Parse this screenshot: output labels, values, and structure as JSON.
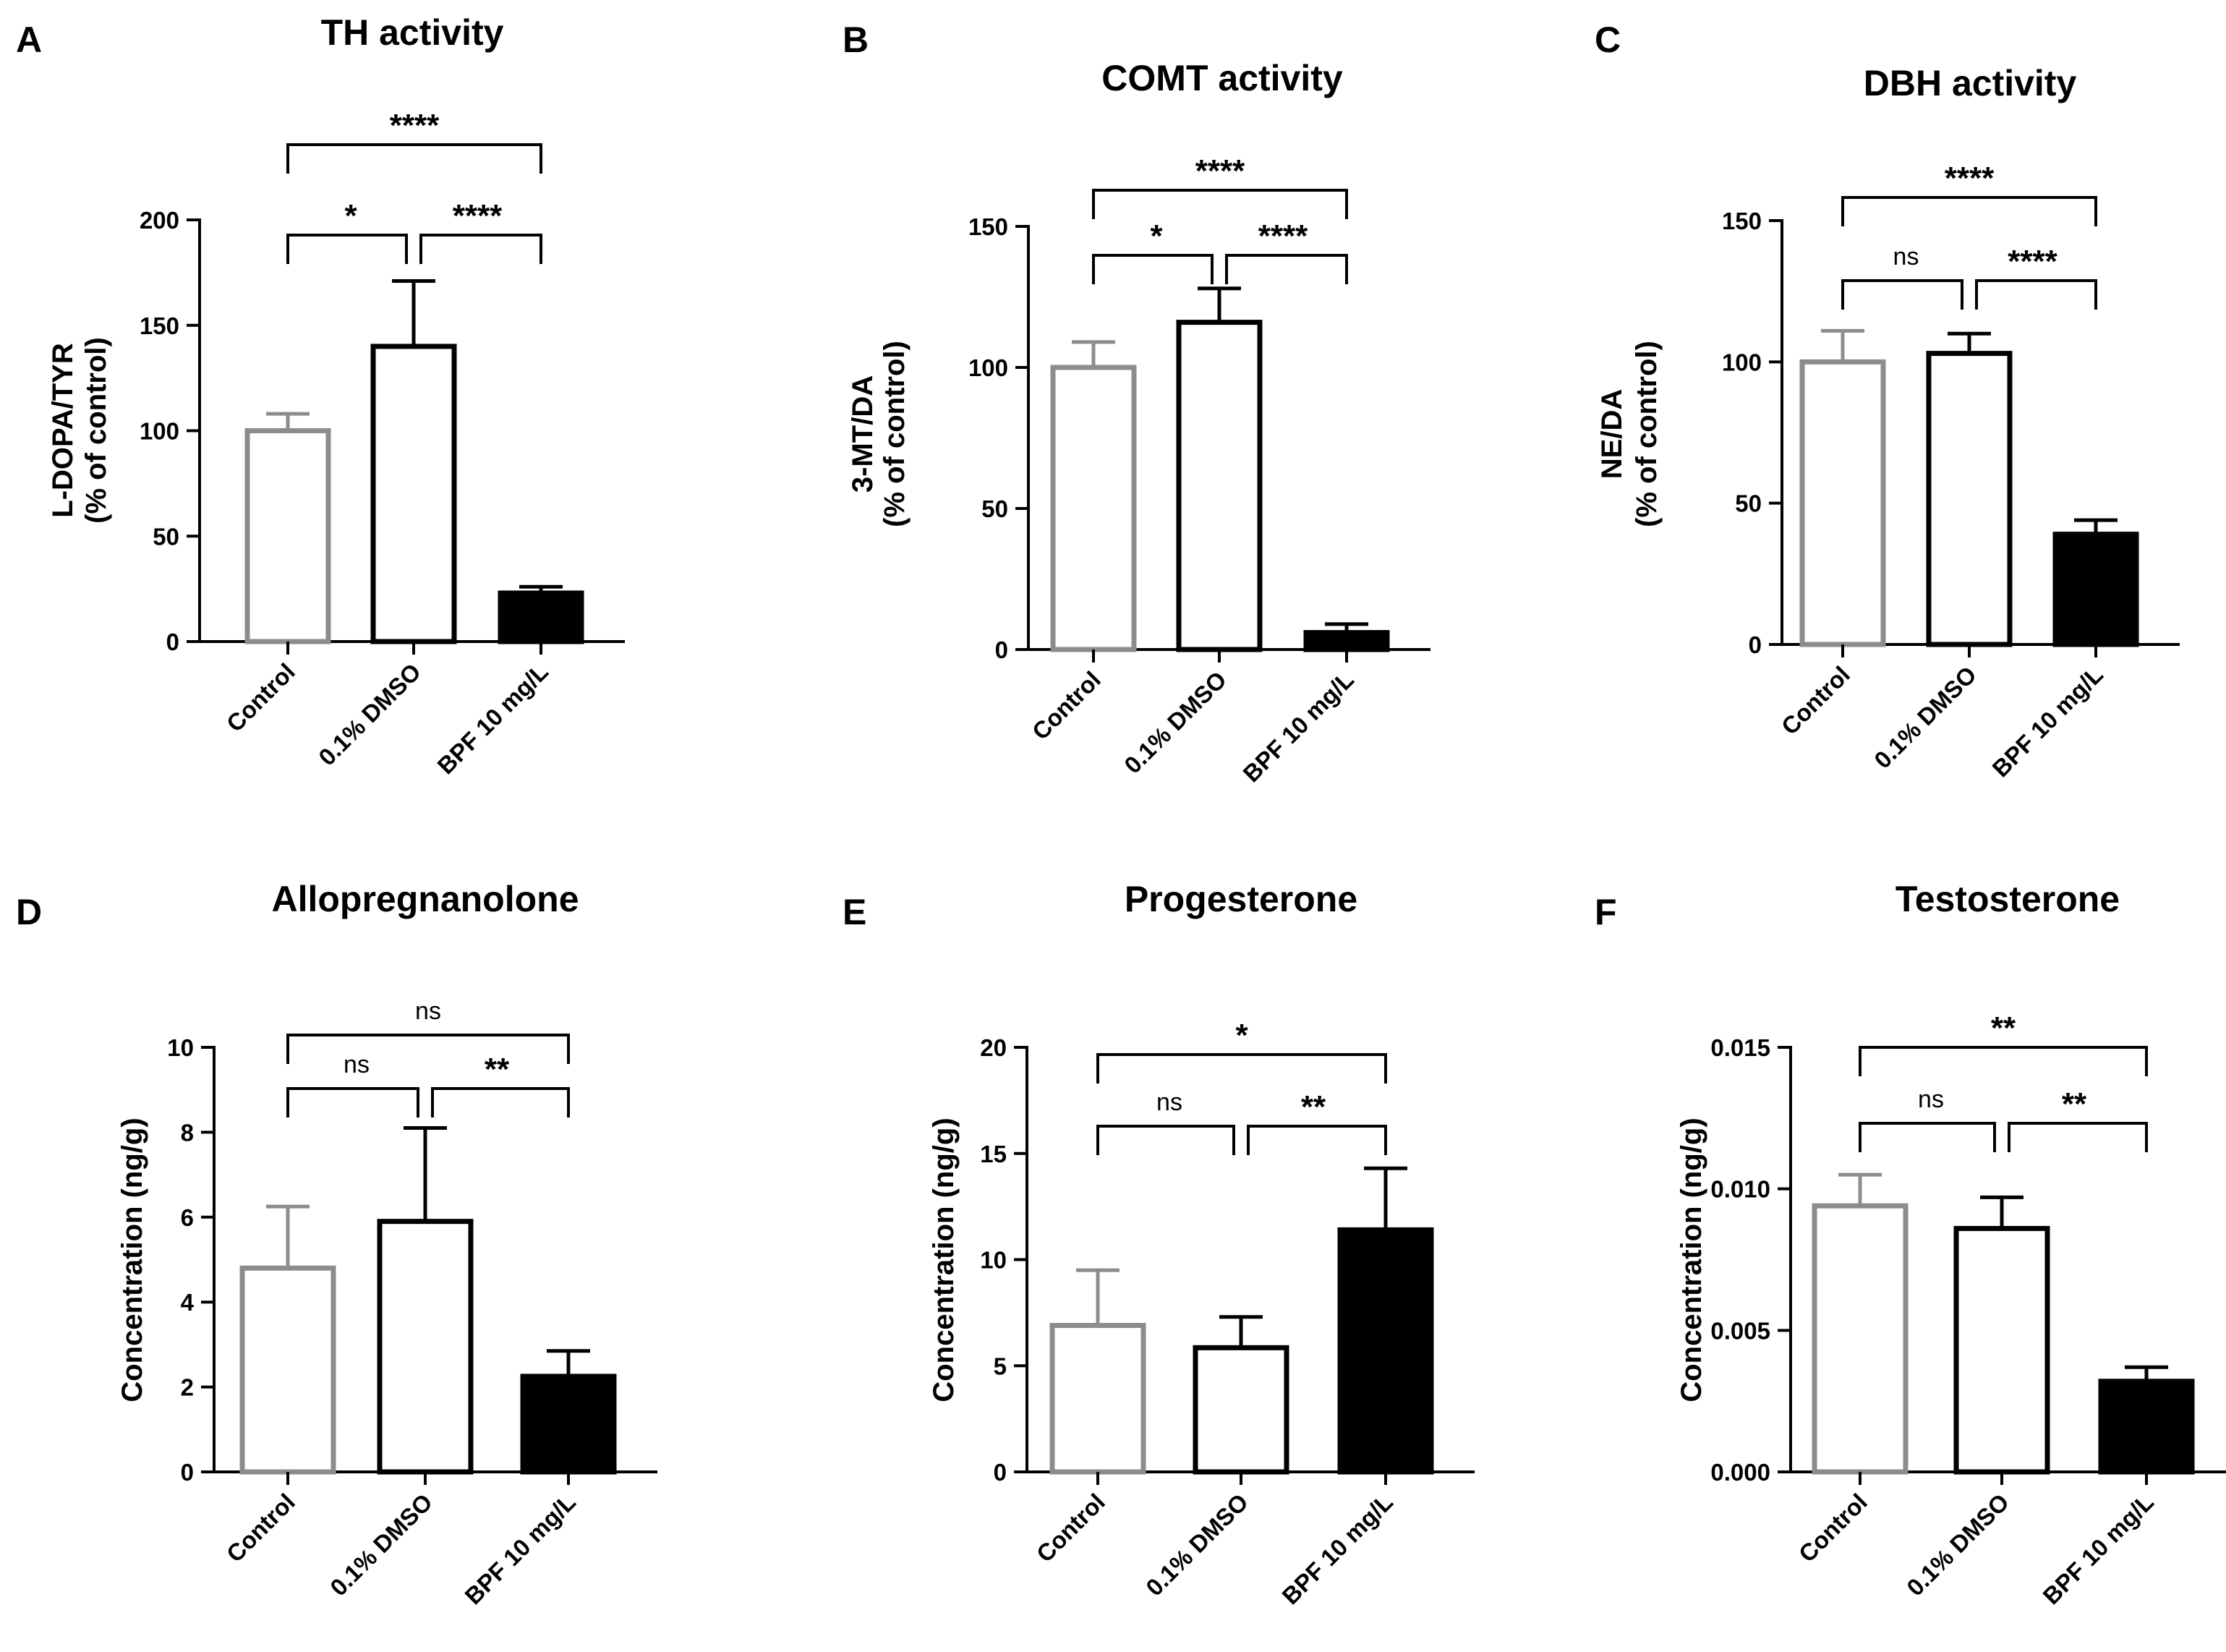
{
  "chart_data": [
    {
      "type": "bar",
      "panel": "A",
      "title": "TH activity",
      "ylabel": [
        "L-DOPA/TYR",
        "(% of control)"
      ],
      "categories": [
        "Control",
        "0.1% DMSO",
        "BPF 10 mg/L"
      ],
      "values": [
        100,
        140,
        23
      ],
      "errors": [
        8,
        31,
        3
      ],
      "ylim": [
        0,
        200
      ],
      "yticks": [
        0,
        50,
        100,
        150,
        200
      ],
      "ytick_labels": [
        "0",
        "50",
        "100",
        "150",
        "200"
      ],
      "bar_styles": [
        "gray-outline",
        "black-outline",
        "black-filled"
      ],
      "significance": [
        {
          "from": 0,
          "to": 1,
          "label": "*"
        },
        {
          "from": 1,
          "to": 2,
          "label": "****"
        },
        {
          "from": 0,
          "to": 2,
          "label": "****"
        }
      ]
    },
    {
      "type": "bar",
      "panel": "B",
      "title": "COMT activity",
      "ylabel": [
        "3-MT/DA",
        "(% of control)"
      ],
      "categories": [
        "Control",
        "0.1% DMSO",
        "BPF 10 mg/L"
      ],
      "values": [
        100,
        116,
        6
      ],
      "errors": [
        9,
        12,
        3
      ],
      "ylim": [
        0,
        150
      ],
      "yticks": [
        0,
        50,
        100,
        150
      ],
      "ytick_labels": [
        "0",
        "50",
        "100",
        "150"
      ],
      "bar_styles": [
        "gray-outline",
        "black-outline",
        "black-filled"
      ],
      "significance": [
        {
          "from": 0,
          "to": 1,
          "label": "*"
        },
        {
          "from": 1,
          "to": 2,
          "label": "****"
        },
        {
          "from": 0,
          "to": 2,
          "label": "****"
        }
      ]
    },
    {
      "type": "bar",
      "panel": "C",
      "title": "DBH activity",
      "ylabel": [
        "NE/DA",
        "(% of control)"
      ],
      "categories": [
        "Control",
        "0.1% DMSO",
        "BPF 10 mg/L"
      ],
      "values": [
        100,
        103,
        39
      ],
      "errors": [
        11,
        7,
        5
      ],
      "ylim": [
        0,
        150
      ],
      "yticks": [
        0,
        50,
        100,
        150
      ],
      "ytick_labels": [
        "0",
        "50",
        "100",
        "150"
      ],
      "bar_styles": [
        "gray-outline",
        "black-outline",
        "black-filled"
      ],
      "significance": [
        {
          "from": 0,
          "to": 1,
          "label": "ns"
        },
        {
          "from": 1,
          "to": 2,
          "label": "****"
        },
        {
          "from": 0,
          "to": 2,
          "label": "****"
        }
      ]
    },
    {
      "type": "bar",
      "panel": "D",
      "title": "Allopregnanolone",
      "ylabel": [
        "Concentration (ng/g)"
      ],
      "categories": [
        "Control",
        "0.1% DMSO",
        "BPF 10 mg/L"
      ],
      "values": [
        4.8,
        5.9,
        2.25
      ],
      "errors": [
        1.45,
        2.2,
        0.6
      ],
      "ylim": [
        0,
        10
      ],
      "yticks": [
        0,
        2,
        4,
        6,
        8,
        10
      ],
      "ytick_labels": [
        "0",
        "2",
        "4",
        "6",
        "8",
        "10"
      ],
      "bar_styles": [
        "gray-outline",
        "black-outline",
        "black-filled"
      ],
      "significance": [
        {
          "from": 0,
          "to": 1,
          "label": "ns"
        },
        {
          "from": 1,
          "to": 2,
          "label": "**"
        },
        {
          "from": 0,
          "to": 2,
          "label": "ns"
        }
      ]
    },
    {
      "type": "bar",
      "panel": "E",
      "title": "Progesterone",
      "ylabel": [
        "Concentration (ng/g)"
      ],
      "categories": [
        "Control",
        "0.1% DMSO",
        "BPF 10 mg/L"
      ],
      "values": [
        6.9,
        5.85,
        11.4
      ],
      "errors": [
        2.6,
        1.45,
        2.9
      ],
      "ylim": [
        0,
        20
      ],
      "yticks": [
        0,
        5,
        10,
        15,
        20
      ],
      "ytick_labels": [
        "0",
        "5",
        "10",
        "15",
        "20"
      ],
      "bar_styles": [
        "gray-outline",
        "black-outline",
        "black-filled"
      ],
      "significance": [
        {
          "from": 0,
          "to": 1,
          "label": "ns"
        },
        {
          "from": 1,
          "to": 2,
          "label": "**"
        },
        {
          "from": 0,
          "to": 2,
          "label": "*"
        }
      ]
    },
    {
      "type": "bar",
      "panel": "F",
      "title": "Testosterone",
      "ylabel": [
        "Concentration (ng/g)"
      ],
      "categories": [
        "Control",
        "0.1% DMSO",
        "BPF 10 mg/L"
      ],
      "values": [
        0.0094,
        0.0086,
        0.0032
      ],
      "errors": [
        0.0011,
        0.0011,
        0.0005
      ],
      "ylim": [
        0,
        0.015
      ],
      "yticks": [
        0,
        0.005,
        0.01,
        0.015
      ],
      "ytick_labels": [
        "0.000",
        "0.005",
        "0.010",
        "0.015"
      ],
      "bar_styles": [
        "gray-outline",
        "black-outline",
        "black-filled"
      ],
      "significance": [
        {
          "from": 0,
          "to": 1,
          "label": "ns"
        },
        {
          "from": 1,
          "to": 2,
          "label": "**"
        },
        {
          "from": 0,
          "to": 2,
          "label": "**"
        }
      ]
    }
  ],
  "colors": {
    "control_outline": "#8c8c8c",
    "outline": "#000000",
    "fill_treated": "#000000",
    "background": "#ffffff"
  }
}
